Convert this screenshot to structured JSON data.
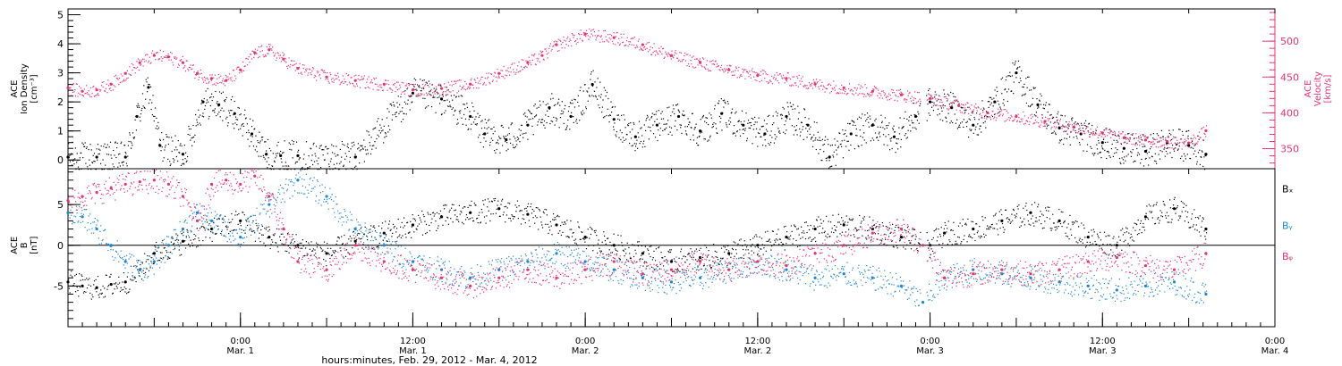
{
  "colors": {
    "black": "#000000",
    "pink": "#e8336d",
    "blue": "#1a86d9"
  },
  "x_axis": {
    "ticks": [
      {
        "hours": 18,
        "time": "0:00",
        "date": "Mar. 1"
      },
      {
        "hours": 30,
        "time": "12:00",
        "date": "Mar. 1"
      },
      {
        "hours": 42,
        "time": "0:00",
        "date": "Mar. 2"
      },
      {
        "hours": 54,
        "time": "12:00",
        "date": "Mar. 2"
      },
      {
        "hours": 66,
        "time": "0:00",
        "date": "Mar. 3"
      },
      {
        "hours": 78,
        "time": "12:00",
        "date": "Mar. 3"
      },
      {
        "hours": 90,
        "time": "0:00",
        "date": "Mar. 4"
      }
    ],
    "title": "hours:minutes, Feb. 29, 2012 - Mar.  4, 2012"
  },
  "chart_data": [
    {
      "type": "scatter",
      "panel": "top",
      "x_range_hours": [
        6,
        90
      ],
      "grid": false,
      "ylabel": [
        "ACE",
        "Ion Density",
        "[cm⁻³]"
      ],
      "ylim": [
        -0.3,
        5.2
      ],
      "yticks": [
        0,
        1,
        2,
        3,
        4,
        5
      ],
      "y2label": [
        "ACE",
        "Velocity",
        "[km/s]"
      ],
      "y2lim": [
        322,
        545
      ],
      "y2ticks": [
        350,
        400,
        450,
        500
      ],
      "series": [
        {
          "axis": "left",
          "color": "black",
          "x": [
            6.0,
            8.0,
            10.0,
            10.8,
            11.6,
            12.4,
            14.0,
            15.4,
            16.5,
            17.6,
            18.8,
            19.8,
            20.8,
            22,
            26,
            30,
            32,
            34,
            35,
            36.5,
            38,
            39.5,
            41,
            42.5,
            44,
            45.5,
            47,
            48.5,
            50,
            51.5,
            53,
            54.5,
            56,
            57.5,
            59,
            60.5,
            62,
            63.5,
            65,
            66,
            67.5,
            69,
            70.5,
            72,
            73.5,
            75,
            76.5,
            78,
            79.5,
            81,
            82.5,
            84,
            85.2
          ],
          "y": [
            0.1,
            0.1,
            0.1,
            1.5,
            2.5,
            0.5,
            0.2,
            2.0,
            1.9,
            1.6,
            0.9,
            0.2,
            0.15,
            0.15,
            0.1,
            2.3,
            2.1,
            1.5,
            0.9,
            0.7,
            1.2,
            1.8,
            1.5,
            2.6,
            1.4,
            0.8,
            1.2,
            1.5,
            1.0,
            1.6,
            1.2,
            0.9,
            1.5,
            1.2,
            0.1,
            0.9,
            1.2,
            0.8,
            1.5,
            2.0,
            1.8,
            1.2,
            2.0,
            3.0,
            1.9,
            1.1,
            0.9,
            0.6,
            0.4,
            0.3,
            0.6,
            0.5,
            0.2
          ]
        },
        {
          "axis": "right",
          "color": "pink",
          "x": [
            6.0,
            7.0,
            8.0,
            9.0,
            10.0,
            11.0,
            12.0,
            13.0,
            14.0,
            15.0,
            16.0,
            17.0,
            18.0,
            19.0,
            20.0,
            21.0,
            22.0,
            24.0,
            26.0,
            28.0,
            30.0,
            32.0,
            34.0,
            36.0,
            38.0,
            39.0,
            40.0,
            42.0,
            44.0,
            46.0,
            48.0,
            50.0,
            52.0,
            54.0,
            56.0,
            58.0,
            60.0,
            62.0,
            64.0,
            66.0,
            68.0,
            70.0,
            72.0,
            74.0,
            76.0,
            78.0,
            79.5,
            81.0,
            82.5,
            84.0,
            85.2
          ],
          "y": [
            435,
            430,
            432,
            440,
            455,
            470,
            480,
            478,
            470,
            455,
            448,
            445,
            460,
            484,
            488,
            475,
            462,
            450,
            445,
            440,
            432,
            434,
            440,
            455,
            470,
            480,
            495,
            510,
            505,
            495,
            480,
            470,
            460,
            452,
            448,
            440,
            435,
            430,
            425,
            420,
            410,
            400,
            395,
            388,
            380,
            372,
            365,
            362,
            360,
            358,
            375
          ]
        }
      ]
    },
    {
      "type": "scatter",
      "panel": "bottom",
      "x_range_hours": [
        6,
        90
      ],
      "grid": false,
      "ylabel": [
        "ACE",
        "B",
        "[nT]"
      ],
      "ylim": [
        -10,
        9.4
      ],
      "yticks": [
        -5,
        0,
        5
      ],
      "zero_line": true,
      "legend": "right",
      "series": [
        {
          "name": "Bₓ",
          "color": "black",
          "x": [
            6.0,
            7.0,
            8.0,
            9.0,
            10.0,
            11.0,
            12.0,
            14.0,
            16.0,
            18.0,
            20.0,
            22.0,
            24.0,
            26.0,
            28.0,
            30.0,
            32.0,
            34.0,
            36.0,
            38.0,
            40.0,
            42.0,
            44.0,
            46.0,
            48.0,
            50.0,
            52.0,
            54.0,
            56.0,
            58.0,
            60.0,
            62.0,
            64.0,
            66.0,
            67.0,
            69.0,
            71.0,
            73.0,
            75.0,
            77.0,
            79.0,
            81.0,
            83.0,
            85.2
          ],
          "y": [
            -4.5,
            -5.0,
            -5.2,
            -4.8,
            -4.5,
            -3.0,
            -1.0,
            0.5,
            2.0,
            3.0,
            1.0,
            0.0,
            -1.0,
            0.5,
            1.5,
            2.5,
            3.5,
            4.0,
            4.5,
            3.8,
            2.5,
            1.0,
            0.0,
            -1.0,
            -2.0,
            -1.5,
            -1.0,
            0.0,
            1.0,
            2.0,
            2.5,
            2.0,
            1.0,
            0.0,
            1.5,
            2.0,
            3.0,
            4.0,
            3.0,
            1.0,
            0.0,
            3.5,
            4.5,
            2.0
          ]
        },
        {
          "name": "Bᵧ",
          "color": "blue",
          "x": [
            6.0,
            7.0,
            8.0,
            9.0,
            10.0,
            11.0,
            12.0,
            13.0,
            14.0,
            15.0,
            16.0,
            18.0,
            20.0,
            22.0,
            24.0,
            26.0,
            28.0,
            30.0,
            32.0,
            34.0,
            36.0,
            38.0,
            40.0,
            42.0,
            44.0,
            46.0,
            48.0,
            50.0,
            52.0,
            54.0,
            56.0,
            58.0,
            60.0,
            62.0,
            64.0,
            65.5,
            67.0,
            69.0,
            71.0,
            73.0,
            75.0,
            77.0,
            79.0,
            81.0,
            83.0,
            85.2
          ],
          "y": [
            4.0,
            3.5,
            2.0,
            0.0,
            -2.0,
            -3.0,
            -2.0,
            0.0,
            2.0,
            4.0,
            3.0,
            1.0,
            5.0,
            8.0,
            6.0,
            2.0,
            0.0,
            -2.0,
            -3.0,
            -4.0,
            -3.0,
            -2.0,
            -1.0,
            -2.0,
            -3.0,
            -4.0,
            -4.5,
            -4.0,
            -3.0,
            -2.0,
            -3.0,
            -4.0,
            -3.5,
            -4.0,
            -5.0,
            -7.0,
            -4.0,
            -3.0,
            -3.5,
            -4.0,
            -4.5,
            -5.0,
            -5.5,
            -5.0,
            -4.5,
            -6.0
          ]
        },
        {
          "name": "Bᵩ",
          "color": "pink",
          "x": [
            6.0,
            7.0,
            8.0,
            9.0,
            10.0,
            11.0,
            12.0,
            13.0,
            14.0,
            15.0,
            16.0,
            17.0,
            18.0,
            19.0,
            20.0,
            21.0,
            22.0,
            24.0,
            26.0,
            28.0,
            30.0,
            32.0,
            34.0,
            36.0,
            38.0,
            40.0,
            42.0,
            44.0,
            46.0,
            48.0,
            50.0,
            52.0,
            54.0,
            56.0,
            58.0,
            60.0,
            62.0,
            64.0,
            65.5,
            67.0,
            69.0,
            71.0,
            73.0,
            75.0,
            77.0,
            79.0,
            81.0,
            83.0,
            85.2
          ],
          "y": [
            5.5,
            6.0,
            6.5,
            7.0,
            7.5,
            7.8,
            8.0,
            7.5,
            6.0,
            3.0,
            7.5,
            8.0,
            7.5,
            8.5,
            6.0,
            2.0,
            -2.0,
            -3.0,
            0.0,
            -2.0,
            -3.0,
            -4.0,
            -5.0,
            -4.0,
            -3.0,
            -4.0,
            -3.0,
            -2.0,
            -3.5,
            -3.0,
            -2.0,
            -3.0,
            -2.0,
            -2.5,
            -1.0,
            0.0,
            1.5,
            2.0,
            0.0,
            -4.0,
            -3.5,
            -3.0,
            -3.5,
            -3.0,
            -2.0,
            -1.5,
            -2.5,
            -3.0,
            -1.0
          ]
        }
      ]
    }
  ]
}
